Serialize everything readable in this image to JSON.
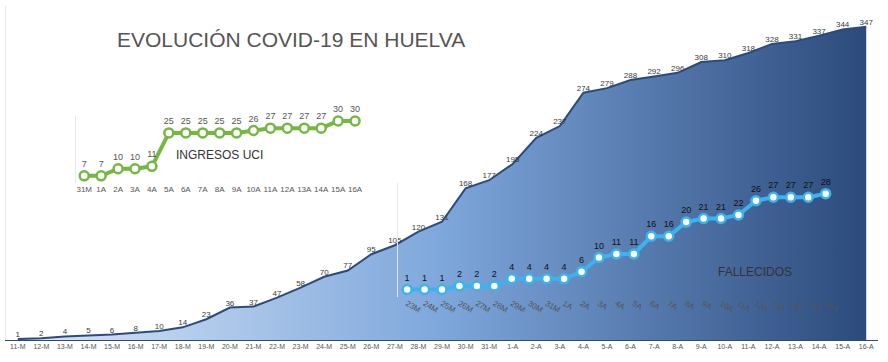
{
  "chart_data": [
    {
      "type": "area",
      "title": "EVOLUCIÓN COVID-19 EN HUELVA",
      "categories": [
        "11-M",
        "12-M",
        "13-M",
        "14-M",
        "15-M",
        "16-M",
        "17-M",
        "18-M",
        "19-M",
        "20-M",
        "21-M",
        "22-M",
        "23-M",
        "24-M",
        "25-M",
        "26-M",
        "27-M",
        "28-M",
        "29-M",
        "30-M",
        "31-M",
        "1-A",
        "2-A",
        "3-A",
        "4-A",
        "5-A",
        "6-A",
        "7-A",
        "8-A",
        "9-A",
        "10-A",
        "11-A",
        "12-A",
        "13-A",
        "14-A",
        "15-A",
        "16-A"
      ],
      "values": [
        1,
        2,
        4,
        5,
        6,
        8,
        10,
        14,
        23,
        36,
        37,
        47,
        58,
        70,
        77,
        95,
        105,
        120,
        131,
        168,
        177,
        195,
        224,
        237,
        274,
        279,
        288,
        292,
        296,
        308,
        310,
        318,
        328,
        331,
        337,
        344,
        347
      ],
      "color": "#2c4a7c",
      "ylim": [
        0,
        370
      ],
      "yticks": [],
      "data_labels": true,
      "tick_labels": "x",
      "grid": false
    },
    {
      "type": "line",
      "categories": [
        "31M",
        "1A",
        "2A",
        "3A",
        "4A",
        "5A",
        "6A",
        "7A",
        "8A",
        "9A",
        "10A",
        "11A",
        "12A",
        "13A",
        "14A",
        "15A",
        "16A"
      ],
      "series": [
        {
          "name": "INGRESOS UCI",
          "color": "#74b843",
          "values": [
            7,
            7,
            10,
            10,
            11,
            25,
            25,
            25,
            25,
            25,
            26,
            27,
            27,
            27,
            27,
            30,
            30
          ]
        }
      ],
      "ylim": [
        4,
        32
      ],
      "yticks": [],
      "marker": "circle",
      "data_labels": true,
      "tick_labels": "x",
      "grid": false
    },
    {
      "type": "line",
      "categories": [
        "23M",
        "24M",
        "25M",
        "26M",
        "27M",
        "28M",
        "29M",
        "30M",
        "31M",
        "1A",
        "2A",
        "3A",
        "4A",
        "5A",
        "6A",
        "7A",
        "8A",
        "9A",
        "10A",
        "11A",
        "12A",
        "13A",
        "14A",
        "15A",
        "16A"
      ],
      "series": [
        {
          "name": "FALLECIDOS",
          "color": "#3bb3ee",
          "values": [
            1,
            1,
            1,
            2,
            2,
            2,
            4,
            4,
            4,
            4,
            6,
            10,
            11,
            11,
            16,
            16,
            20,
            21,
            21,
            22,
            26,
            27,
            27,
            27,
            28
          ]
        }
      ],
      "ylim": [
        -1,
        31
      ],
      "yticks": [],
      "marker": "circle",
      "data_labels": true,
      "tick_labels": "x",
      "grid": false
    }
  ]
}
